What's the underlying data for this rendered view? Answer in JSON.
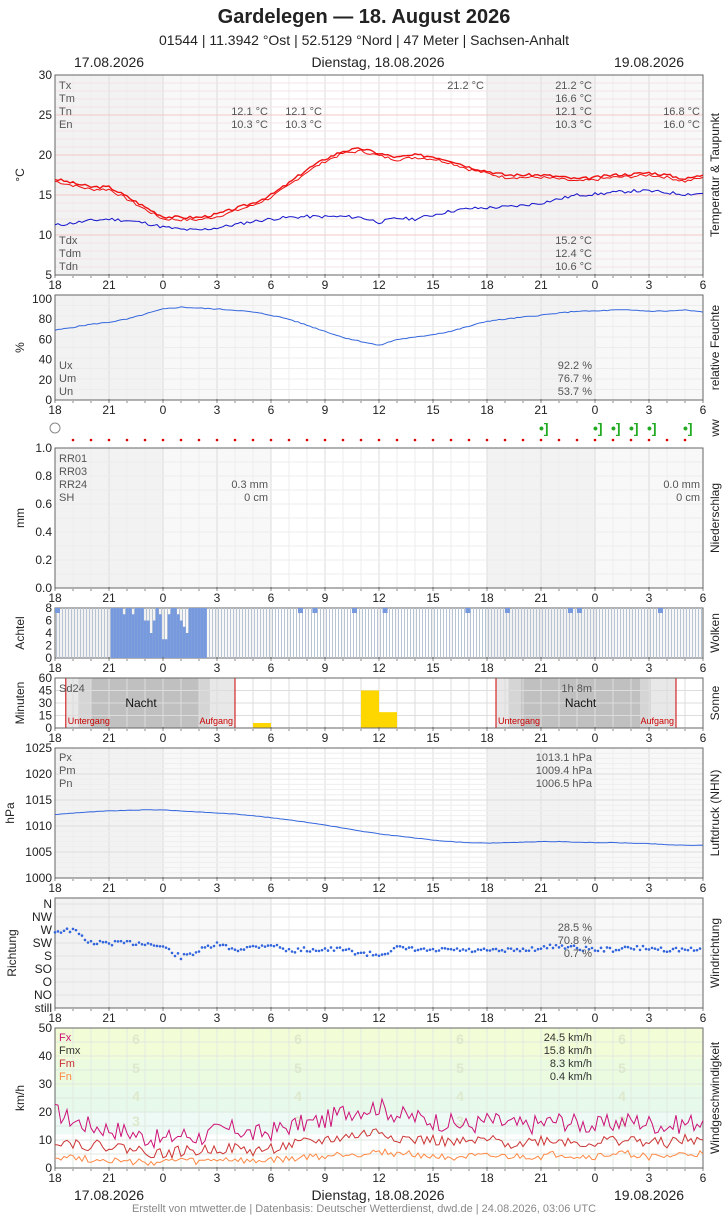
{
  "header": {
    "title": "Gardelegen  —  18. August 2026",
    "subtitle": "01544  |  11.3942 °Ost  |  52.5129 °Nord  |  47 Meter  |  Sachsen-Anhalt",
    "date_left": "17.08.2026",
    "date_center": "Dienstag, 18.08.2026",
    "date_right": "19.08.2026"
  },
  "footer": "Erstellt von mtwetter.de | Datenbasis: Deutscher Wetterdienst, dwd.de | 24.08.2026, 03:06 UTC",
  "colors": {
    "temp": "#ee1111",
    "dew": "#1111cc",
    "humidity": "#3366dd",
    "cloud": "#7799dd",
    "sun": "#ffd700",
    "night": "#c0c0c0",
    "fx": "#cc1177",
    "fm": "#cc3333",
    "fn": "#ff8844",
    "red": "#cc0000"
  },
  "chart_data": [
    {
      "type": "line",
      "panel": "temp",
      "side_label": "Temperatur & Taupunkt",
      "ylabel": "°C",
      "ylim": [
        5,
        30
      ],
      "yticks": [
        "30",
        "25",
        "20",
        "15",
        "10",
        "5"
      ],
      "x_ticks": [
        "18",
        "21",
        "0",
        "3",
        "6",
        "9",
        "12",
        "15",
        "18",
        "21",
        "0",
        "3",
        "6"
      ],
      "x_hours": [
        18,
        19,
        20,
        21,
        22,
        23,
        0,
        1,
        2,
        3,
        4,
        5,
        6,
        7,
        8,
        9,
        10,
        11,
        12,
        13,
        14,
        15,
        16,
        17,
        18,
        19,
        20,
        21,
        22,
        23,
        0,
        1,
        2,
        3,
        4,
        5,
        6
      ],
      "series": [
        {
          "name": "T",
          "values": [
            17.0,
            16.5,
            16.0,
            16.0,
            14.8,
            13.5,
            12.3,
            12.2,
            12.2,
            12.6,
            13.3,
            14.0,
            15.0,
            16.5,
            18.2,
            19.5,
            20.5,
            20.8,
            20.2,
            19.7,
            20.0,
            19.8,
            19.3,
            18.5,
            18.0,
            17.5,
            17.5,
            17.5,
            17.3,
            17.0,
            17.2,
            17.5,
            17.6,
            17.8,
            17.5,
            17.0,
            17.5
          ]
        },
        {
          "name": "Td",
          "values": [
            11.2,
            11.5,
            11.8,
            12.0,
            11.8,
            11.5,
            11.0,
            10.7,
            10.6,
            10.9,
            11.3,
            11.7,
            12.0,
            12.2,
            12.3,
            12.3,
            12.3,
            12.2,
            11.6,
            12.1,
            12.0,
            12.5,
            13.0,
            13.3,
            13.4,
            13.5,
            13.7,
            14.0,
            14.5,
            15.0,
            15.1,
            15.3,
            15.5,
            15.5,
            15.3,
            15.1,
            15.2
          ]
        }
      ],
      "stats_top": [
        {
          "label": "Tx",
          "v1": "",
          "v2": "",
          "v3": "21.2 °C",
          "v4": "21.2 °C",
          "v5": ""
        },
        {
          "label": "Tm",
          "v1": "",
          "v2": "",
          "v3": "",
          "v4": "16.6 °C",
          "v5": ""
        },
        {
          "label": "Tn",
          "v1": "12.1 °C",
          "v2": "12.1 °C",
          "v3": "",
          "v4": "12.1 °C",
          "v5": "16.8 °C"
        },
        {
          "label": "En",
          "v1": "10.3 °C",
          "v2": "10.3 °C",
          "v3": "",
          "v4": "10.3 °C",
          "v5": "16.0 °C"
        }
      ],
      "stats_bottom": [
        {
          "label": "Tdx",
          "value": "15.2 °C"
        },
        {
          "label": "Tdm",
          "value": "12.4 °C"
        },
        {
          "label": "Tdn",
          "value": "10.6 °C"
        }
      ]
    },
    {
      "type": "line",
      "panel": "humidity",
      "side_label": "relative Feuchte",
      "ylabel": "%",
      "ylim": [
        0,
        100
      ],
      "yticks": [
        "100",
        "80",
        "60",
        "40",
        "20",
        "0"
      ],
      "x_ticks": [
        "18",
        "21",
        "0",
        "3",
        "6",
        "9",
        "12",
        "15",
        "18",
        "21",
        "0",
        "3",
        "6"
      ],
      "x_hours": [
        18,
        19,
        20,
        21,
        22,
        23,
        0,
        1,
        2,
        3,
        4,
        5,
        6,
        7,
        8,
        9,
        10,
        11,
        12,
        13,
        14,
        15,
        16,
        17,
        18,
        19,
        20,
        21,
        22,
        23,
        0,
        1,
        2,
        3,
        4,
        5,
        6
      ],
      "series": [
        {
          "name": "U",
          "values": [
            69,
            72,
            75,
            77,
            80,
            85,
            90,
            92,
            91,
            90,
            89,
            87,
            84,
            80,
            74,
            68,
            62,
            58,
            54,
            60,
            62,
            65,
            68,
            73,
            78,
            80,
            82,
            84,
            86,
            88,
            88,
            89,
            89,
            88,
            88,
            89,
            87
          ]
        }
      ],
      "stats": [
        {
          "label": "Ux",
          "value": "92.2 %"
        },
        {
          "label": "Um",
          "value": "76.7 %"
        },
        {
          "label": "Un",
          "value": "53.7 %"
        }
      ]
    },
    {
      "type": "scatter",
      "panel": "ww",
      "side_label": "ww"
    },
    {
      "type": "bar",
      "panel": "precip",
      "side_label": "Niederschlag",
      "ylabel": "mm",
      "ylim": [
        0,
        1
      ],
      "yticks": [
        "1.0",
        "0.8",
        "0.6",
        "0.4",
        "0.2",
        "0.0"
      ],
      "x_ticks": [
        "18",
        "21",
        "0",
        "3",
        "6",
        "9",
        "12",
        "15",
        "18",
        "21",
        "0",
        "3",
        "6"
      ],
      "values": [],
      "stats": [
        {
          "label": "RR01",
          "v1": "",
          "v2": ""
        },
        {
          "label": "RR03",
          "v1": "",
          "v2": ""
        },
        {
          "label": "RR24",
          "v1": "0.3 mm",
          "v2": "0.0 mm"
        },
        {
          "label": "SH",
          "v1": "0 cm",
          "v2": "0 cm"
        }
      ]
    },
    {
      "type": "bar",
      "panel": "clouds",
      "side_label": "Wolken",
      "ylabel": "Achtel",
      "ylim": [
        0,
        8
      ],
      "yticks": [
        "8",
        "6",
        "4",
        "2",
        "0"
      ],
      "x_ticks": [
        "18",
        "21",
        "0",
        "3",
        "6",
        "9",
        "12",
        "15",
        "18",
        "21",
        "0",
        "3",
        "6"
      ]
    },
    {
      "type": "bar",
      "panel": "sun",
      "side_label": "Sonne",
      "ylabel": "Minuten",
      "ylim": [
        0,
        60
      ],
      "yticks": [
        "60",
        "45",
        "30",
        "15",
        "0"
      ],
      "x_ticks": [
        "18",
        "21",
        "0",
        "3",
        "6",
        "9",
        "12",
        "15",
        "18",
        "21",
        "0",
        "3",
        "6"
      ],
      "bars": [
        {
          "hour": "5",
          "value": 6
        },
        {
          "hour": "11",
          "value": 45
        },
        {
          "hour": "12",
          "value": 19
        }
      ],
      "labels": {
        "sd24": "Sd24",
        "sd24_value": "1h 8m",
        "night": "Nacht",
        "sunset": "Untergang",
        "sunrise": "Aufgang"
      }
    },
    {
      "type": "line",
      "panel": "pressure",
      "side_label": "Luftdruck (NHN)",
      "ylabel": "hPa",
      "ylim": [
        1000,
        1025
      ],
      "yticks": [
        "1025",
        "1020",
        "1015",
        "1010",
        "1005",
        "1000"
      ],
      "x_ticks": [
        "18",
        "21",
        "0",
        "3",
        "6",
        "9",
        "12",
        "15",
        "18",
        "21",
        "0",
        "3",
        "6"
      ],
      "x_hours": [
        18,
        19,
        20,
        21,
        22,
        23,
        0,
        1,
        2,
        3,
        4,
        5,
        6,
        7,
        8,
        9,
        10,
        11,
        12,
        13,
        14,
        15,
        16,
        17,
        18,
        19,
        20,
        21,
        22,
        23,
        0,
        1,
        2,
        3,
        4,
        5,
        6
      ],
      "series": [
        {
          "name": "P",
          "values": [
            1012.2,
            1012.5,
            1012.7,
            1012.9,
            1013.0,
            1013.1,
            1013.1,
            1012.9,
            1012.7,
            1012.5,
            1012.3,
            1012.0,
            1011.6,
            1011.2,
            1010.7,
            1010.2,
            1009.6,
            1009.0,
            1008.5,
            1008.1,
            1007.7,
            1007.3,
            1007.0,
            1006.8,
            1006.7,
            1006.8,
            1006.9,
            1007.0,
            1007.0,
            1006.9,
            1006.8,
            1006.8,
            1006.7,
            1006.6,
            1006.4,
            1006.3,
            1006.3
          ]
        }
      ],
      "stats": [
        {
          "label": "Px",
          "value": "1013.1 hPa"
        },
        {
          "label": "Pm",
          "value": "1009.4 hPa"
        },
        {
          "label": "Pn",
          "value": "1006.5 hPa"
        }
      ]
    },
    {
      "type": "scatter",
      "panel": "winddir",
      "side_label": "Windrichtung",
      "ylabel": "Richtung",
      "yticks": [
        "N",
        "NW",
        "W",
        "SW",
        "S",
        "SO",
        "O",
        "NO",
        "still"
      ],
      "x_ticks": [
        "18",
        "21",
        "0",
        "3",
        "6",
        "9",
        "12",
        "15",
        "18",
        "21",
        "0",
        "3",
        "6"
      ],
      "x_hours": [
        18,
        19,
        20,
        21,
        22,
        23,
        0,
        1,
        2,
        3,
        4,
        5,
        6,
        7,
        8,
        9,
        10,
        11,
        12,
        13,
        14,
        15,
        16,
        17,
        18,
        19,
        20,
        21,
        22,
        23,
        0,
        1,
        2,
        3,
        4,
        5,
        6
      ],
      "series": [
        {
          "name": "dir",
          "values": [
            2.1,
            2.0,
            3.0,
            3.0,
            3.0,
            3.0,
            3.3,
            4.1,
            3.6,
            3.1,
            3.5,
            3.3,
            3.1,
            3.6,
            3.5,
            3.5,
            3.5,
            3.8,
            3.9,
            3.4,
            3.5,
            3.6,
            3.5,
            3.6,
            3.6,
            3.6,
            3.5,
            3.4,
            3.2,
            3.4,
            3.5,
            3.5,
            3.4,
            3.4,
            3.5,
            3.5,
            3.6
          ]
        }
      ],
      "stats": [
        {
          "value": "28.5 %"
        },
        {
          "value": "70.8 %"
        },
        {
          "value": "0.7 %"
        }
      ]
    },
    {
      "type": "line",
      "panel": "windspeed",
      "side_label": "Windgeschwindigkeit",
      "ylabel": "km/h",
      "ylim": [
        0,
        50
      ],
      "yticks": [
        "50",
        "40",
        "30",
        "20",
        "10",
        "0"
      ],
      "x_ticks": [
        "18",
        "21",
        "0",
        "3",
        "6",
        "9",
        "12",
        "15",
        "18",
        "21",
        "0",
        "3",
        "6"
      ],
      "bft": [
        "6",
        "5",
        "4",
        "3"
      ],
      "x_hours": [
        18,
        19,
        20,
        21,
        22,
        23,
        0,
        1,
        2,
        3,
        4,
        5,
        6,
        7,
        8,
        9,
        10,
        11,
        12,
        13,
        14,
        15,
        16,
        17,
        18,
        19,
        20,
        21,
        22,
        23,
        0,
        1,
        2,
        3,
        4,
        5,
        6
      ],
      "series": [
        {
          "name": "Fx",
          "values": [
            20,
            17,
            15,
            14,
            13,
            11,
            10,
            12,
            11,
            13,
            14,
            12,
            13,
            15,
            16,
            17,
            20,
            21,
            22,
            19,
            18,
            17,
            16,
            15,
            17,
            16,
            15,
            16,
            17,
            16,
            15,
            16,
            17,
            16,
            15,
            16,
            17
          ]
        },
        {
          "name": "Fmx",
          "values": [
            10,
            9,
            8,
            8,
            7,
            6,
            5,
            6,
            6,
            7,
            7,
            6,
            7,
            8,
            9,
            10,
            11,
            12,
            13,
            11,
            10,
            10,
            9,
            9,
            10,
            9,
            9,
            10,
            10,
            9,
            9,
            10,
            10,
            9,
            9,
            10,
            10
          ]
        },
        {
          "name": "Fn",
          "values": [
            4,
            4,
            3,
            3,
            2,
            2,
            2,
            3,
            2,
            3,
            3,
            2,
            3,
            3,
            4,
            4,
            5,
            5,
            6,
            5,
            5,
            4,
            4,
            4,
            4,
            4,
            4,
            4,
            5,
            4,
            4,
            5,
            5,
            4,
            4,
            5,
            5
          ]
        }
      ],
      "stats": [
        {
          "label": "Fx",
          "value": "24.5 km/h"
        },
        {
          "label": "Fmx",
          "value": "15.8 km/h"
        },
        {
          "label": "Fm",
          "value": "8.3 km/h"
        },
        {
          "label": "Fn",
          "value": "0.4 km/h"
        }
      ]
    }
  ]
}
